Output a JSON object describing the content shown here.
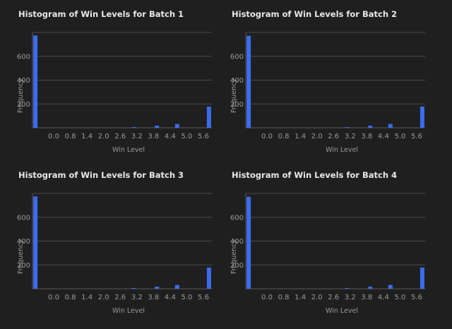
{
  "colors": {
    "bar": "#3b6cf0",
    "background": "#1f1f1f"
  },
  "chart_data": [
    {
      "type": "bar",
      "title": "Histogram of Win Levels for Batch 1",
      "xlabel": "Win Level",
      "ylabel": "Frequency",
      "ylim": [
        0,
        800
      ],
      "yticks": [
        200,
        400,
        600
      ],
      "xtick_labels": [
        "0.0",
        "0.8",
        "1.4",
        "2.0",
        "2.6",
        "3.2",
        "3.8",
        "4.4",
        "5.0",
        "5.6"
      ],
      "bins": [
        {
          "x": 0.0,
          "count": 775
        },
        {
          "x": 3.4,
          "count": 3
        },
        {
          "x": 4.2,
          "count": 18
        },
        {
          "x": 4.9,
          "count": 32
        },
        {
          "x": 6.0,
          "count": 178
        }
      ],
      "grid": true
    },
    {
      "type": "bar",
      "title": "Histogram of Win Levels for Batch 2",
      "xlabel": "Win Level",
      "ylabel": "Frequency",
      "ylim": [
        0,
        800
      ],
      "yticks": [
        200,
        400,
        600
      ],
      "xtick_labels": [
        "0.0",
        "0.8",
        "1.4",
        "2.0",
        "2.6",
        "3.2",
        "3.8",
        "4.4",
        "5.0",
        "5.6"
      ],
      "bins": [
        {
          "x": 0.0,
          "count": 772
        },
        {
          "x": 3.4,
          "count": 3
        },
        {
          "x": 4.2,
          "count": 18
        },
        {
          "x": 4.9,
          "count": 32
        },
        {
          "x": 6.0,
          "count": 178
        }
      ],
      "grid": true
    },
    {
      "type": "bar",
      "title": "Histogram of Win Levels for Batch 3",
      "xlabel": "Win Level",
      "ylabel": "Frequency",
      "ylim": [
        0,
        800
      ],
      "yticks": [
        200,
        400,
        600
      ],
      "xtick_labels": [
        "0.0",
        "0.8",
        "1.4",
        "2.0",
        "2.6",
        "3.2",
        "3.8",
        "4.4",
        "5.0",
        "5.6"
      ],
      "bins": [
        {
          "x": 0.0,
          "count": 775
        },
        {
          "x": 3.4,
          "count": 3
        },
        {
          "x": 4.2,
          "count": 18
        },
        {
          "x": 4.9,
          "count": 32
        },
        {
          "x": 6.0,
          "count": 178
        }
      ],
      "grid": true
    },
    {
      "type": "bar",
      "title": "Histogram of Win Levels for Batch 4",
      "xlabel": "Win Level",
      "ylabel": "Frequency",
      "ylim": [
        0,
        800
      ],
      "yticks": [
        200,
        400,
        600
      ],
      "xtick_labels": [
        "0.0",
        "0.8",
        "1.4",
        "2.0",
        "2.6",
        "3.2",
        "3.8",
        "4.4",
        "5.0",
        "5.6"
      ],
      "bins": [
        {
          "x": 0.0,
          "count": 772
        },
        {
          "x": 3.4,
          "count": 3
        },
        {
          "x": 4.2,
          "count": 18
        },
        {
          "x": 4.9,
          "count": 32
        },
        {
          "x": 6.0,
          "count": 178
        }
      ],
      "grid": true
    }
  ]
}
